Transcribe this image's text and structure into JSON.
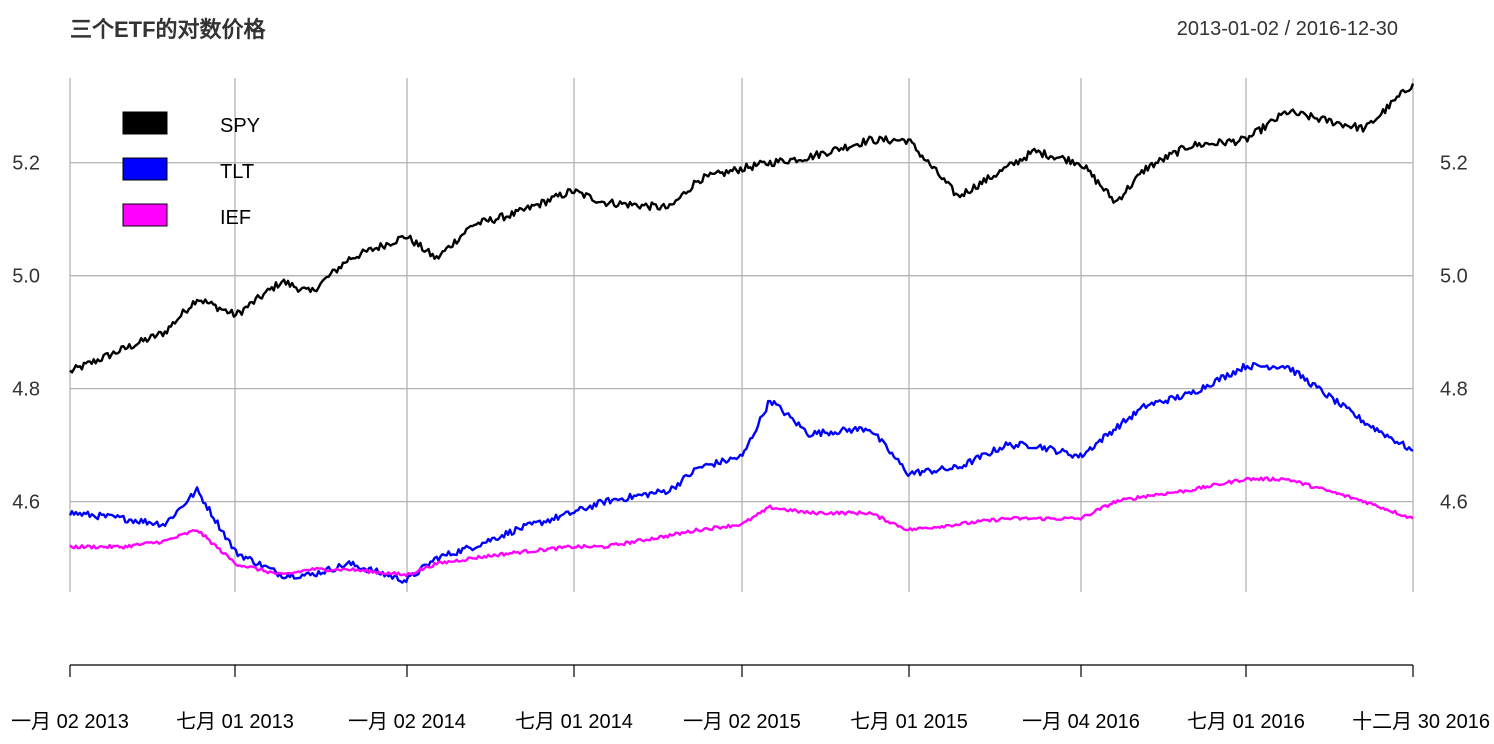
{
  "chart_data": {
    "type": "line",
    "title": "三个ETF的对数价格",
    "date_range_label": "2013-01-02 / 2016-12-30",
    "x_tick_labels": [
      "一月 02 2013",
      "七月 01 2013",
      "一月 02 2014",
      "七月 01 2014",
      "一月 02 2015",
      "七月 01 2015",
      "一月 04 2016",
      "七月 01 2016",
      "十二月 30 2016"
    ],
    "y_ticks": [
      4.6,
      4.8,
      5.0,
      5.2
    ],
    "y_tick_labels": [
      "4.6",
      "4.8",
      "5.0",
      "5.2"
    ],
    "ylim": [
      4.44,
      5.35
    ],
    "grid": true,
    "legend_position": "top-left",
    "x": [
      "2013-01-02",
      "2013-03-01",
      "2013-04-15",
      "2013-05-20",
      "2013-07-01",
      "2013-08-20",
      "2013-09-20",
      "2013-11-01",
      "2014-01-02",
      "2014-02-04",
      "2014-03-15",
      "2014-05-01",
      "2014-07-01",
      "2014-08-05",
      "2014-10-15",
      "2014-11-15",
      "2015-01-02",
      "2015-02-01",
      "2015-03-15",
      "2015-05-20",
      "2015-07-01",
      "2015-08-24",
      "2015-10-15",
      "2015-11-15",
      "2016-01-04",
      "2016-02-11",
      "2016-03-15",
      "2016-05-01",
      "2016-07-01",
      "2016-08-15",
      "2016-11-08",
      "2016-12-30"
    ],
    "series": [
      {
        "name": "SPY",
        "color": "#000000",
        "values": [
          4.83,
          4.87,
          4.9,
          4.96,
          4.93,
          4.99,
          4.97,
          5.03,
          5.07,
          5.03,
          5.09,
          5.11,
          5.15,
          5.13,
          5.12,
          5.17,
          5.19,
          5.2,
          5.21,
          5.24,
          5.24,
          5.14,
          5.19,
          5.22,
          5.2,
          5.13,
          5.19,
          5.23,
          5.24,
          5.29,
          5.26,
          5.34
        ]
      },
      {
        "name": "TLT",
        "color": "#0000ff",
        "values": [
          4.58,
          4.57,
          4.56,
          4.62,
          4.51,
          4.47,
          4.47,
          4.49,
          4.46,
          4.5,
          4.52,
          4.55,
          4.58,
          4.6,
          4.62,
          4.66,
          4.68,
          4.78,
          4.72,
          4.73,
          4.65,
          4.66,
          4.7,
          4.7,
          4.68,
          4.73,
          4.77,
          4.79,
          4.84,
          4.84,
          4.74,
          4.69
        ]
      },
      {
        "name": "IEF",
        "color": "#ff00ff",
        "values": [
          4.52,
          4.52,
          4.53,
          4.55,
          4.49,
          4.47,
          4.48,
          4.48,
          4.47,
          4.49,
          4.5,
          4.51,
          4.52,
          4.52,
          4.54,
          4.55,
          4.56,
          4.59,
          4.58,
          4.58,
          4.55,
          4.56,
          4.57,
          4.57,
          4.57,
          4.6,
          4.61,
          4.62,
          4.64,
          4.64,
          4.6,
          4.57
        ]
      }
    ]
  }
}
